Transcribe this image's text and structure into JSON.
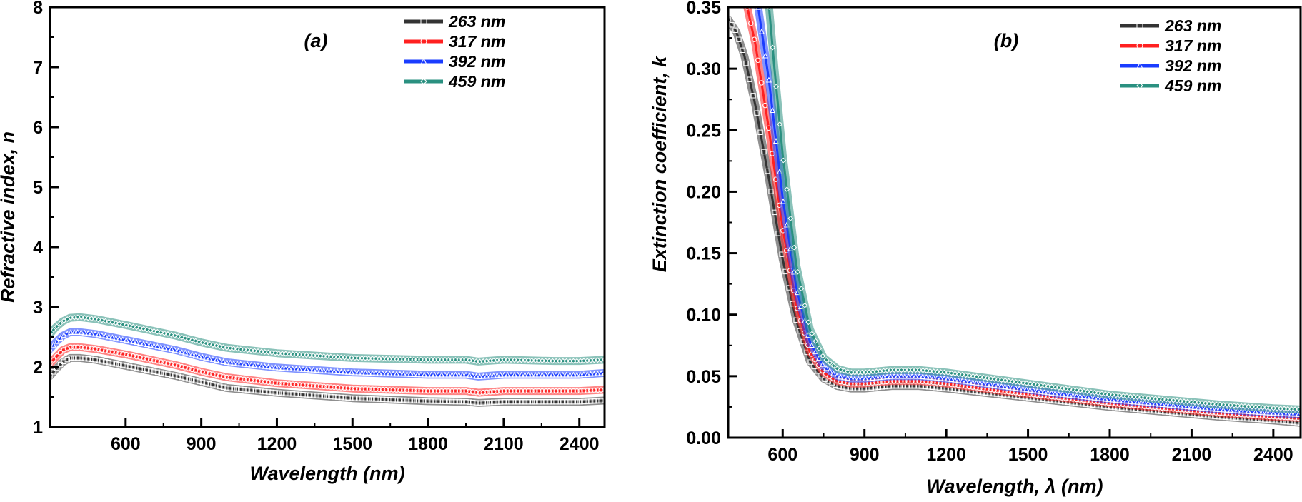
{
  "chart_data": [
    {
      "type": "line",
      "panel_label": "(a)",
      "xlabel": "Wavelength (nm)",
      "ylabel": "Refractive index, n",
      "xlim": [
        300,
        2500
      ],
      "ylim": [
        1,
        8
      ],
      "xticks": [
        600,
        900,
        1200,
        1500,
        1800,
        2100,
        2400
      ],
      "yticks": [
        1,
        2,
        3,
        4,
        5,
        6,
        7,
        8
      ],
      "legend_position": "top-right",
      "series": [
        {
          "name": "263 nm",
          "color": "#333333",
          "marker": "square",
          "x": [
            300,
            320,
            350,
            380,
            420,
            480,
            600,
            800,
            900,
            1000,
            1200,
            1500,
            1800,
            1950,
            2000,
            2100,
            2200,
            2300,
            2400,
            2500
          ],
          "y": [
            1.85,
            1.95,
            2.08,
            2.15,
            2.15,
            2.12,
            2.02,
            1.85,
            1.75,
            1.65,
            1.57,
            1.48,
            1.43,
            1.42,
            1.4,
            1.42,
            1.42,
            1.42,
            1.42,
            1.44
          ]
        },
        {
          "name": "317 nm",
          "color": "#ff2020",
          "marker": "circle",
          "x": [
            300,
            320,
            350,
            380,
            420,
            480,
            600,
            800,
            900,
            1000,
            1200,
            1500,
            1800,
            1950,
            2000,
            2100,
            2200,
            2300,
            2400,
            2500
          ],
          "y": [
            2.05,
            2.15,
            2.28,
            2.33,
            2.33,
            2.3,
            2.21,
            2.03,
            1.92,
            1.83,
            1.73,
            1.64,
            1.6,
            1.6,
            1.57,
            1.6,
            1.6,
            1.6,
            1.6,
            1.62
          ]
        },
        {
          "name": "392 nm",
          "color": "#1a3cff",
          "marker": "triangle",
          "x": [
            300,
            320,
            350,
            380,
            420,
            480,
            600,
            800,
            900,
            1000,
            1200,
            1500,
            1800,
            1950,
            2000,
            2100,
            2200,
            2300,
            2400,
            2500
          ],
          "y": [
            2.3,
            2.4,
            2.52,
            2.58,
            2.58,
            2.55,
            2.45,
            2.28,
            2.17,
            2.08,
            1.99,
            1.91,
            1.87,
            1.87,
            1.84,
            1.87,
            1.87,
            1.87,
            1.87,
            1.9
          ]
        },
        {
          "name": "459 nm",
          "color": "#2a9080",
          "marker": "diamond",
          "x": [
            300,
            320,
            350,
            380,
            420,
            480,
            600,
            800,
            900,
            1000,
            1200,
            1500,
            1800,
            1950,
            2000,
            2100,
            2200,
            2300,
            2400,
            2500
          ],
          "y": [
            2.55,
            2.65,
            2.76,
            2.82,
            2.83,
            2.8,
            2.7,
            2.52,
            2.41,
            2.32,
            2.23,
            2.15,
            2.12,
            2.12,
            2.09,
            2.12,
            2.11,
            2.1,
            2.1,
            2.12
          ]
        }
      ]
    },
    {
      "type": "line",
      "panel_label": "(b)",
      "xlabel": "Wavelength, λ (nm)",
      "ylabel": "Extinction coefficient, k",
      "xlim": [
        400,
        2500
      ],
      "ylim": [
        0,
        0.35
      ],
      "xticks": [
        600,
        900,
        1200,
        1500,
        1800,
        2100,
        2400
      ],
      "yticks": [
        "0.00",
        "0.05",
        "0.10",
        "0.15",
        "0.20",
        "0.25",
        "0.30",
        "0.35"
      ],
      "legend_position": "top-right",
      "series": [
        {
          "name": "263 nm",
          "color": "#333333",
          "marker": "square",
          "x": [
            400,
            430,
            460,
            500,
            550,
            600,
            650,
            700,
            750,
            800,
            850,
            900,
            1000,
            1100,
            1200,
            1400,
            1600,
            1800,
            2000,
            2200,
            2400,
            2500
          ],
          "y": [
            0.34,
            0.33,
            0.31,
            0.27,
            0.21,
            0.145,
            0.095,
            0.062,
            0.048,
            0.042,
            0.04,
            0.04,
            0.042,
            0.042,
            0.04,
            0.035,
            0.03,
            0.025,
            0.021,
            0.017,
            0.014,
            0.012
          ]
        },
        {
          "name": "317 nm",
          "color": "#ff2020",
          "marker": "circle",
          "x": [
            470,
            500,
            550,
            600,
            650,
            700,
            750,
            800,
            850,
            900,
            1000,
            1100,
            1200,
            1400,
            1600,
            1800,
            2000,
            2200,
            2400,
            2500
          ],
          "y": [
            0.35,
            0.32,
            0.25,
            0.17,
            0.108,
            0.07,
            0.053,
            0.046,
            0.044,
            0.044,
            0.046,
            0.046,
            0.044,
            0.038,
            0.033,
            0.028,
            0.024,
            0.02,
            0.017,
            0.016
          ]
        },
        {
          "name": "392 nm",
          "color": "#1a3cff",
          "marker": "triangle",
          "x": [
            510,
            550,
            600,
            650,
            700,
            750,
            800,
            850,
            900,
            1000,
            1100,
            1200,
            1400,
            1600,
            1800,
            2000,
            2200,
            2400,
            2500
          ],
          "y": [
            0.35,
            0.29,
            0.195,
            0.122,
            0.078,
            0.058,
            0.05,
            0.048,
            0.048,
            0.05,
            0.05,
            0.048,
            0.042,
            0.036,
            0.031,
            0.027,
            0.023,
            0.02,
            0.019
          ]
        },
        {
          "name": "459 nm",
          "color": "#2a9080",
          "marker": "diamond",
          "x": [
            550,
            570,
            600,
            650,
            700,
            750,
            800,
            850,
            900,
            1000,
            1100,
            1200,
            1400,
            1600,
            1800,
            2000,
            2200,
            2400,
            2500
          ],
          "y": [
            0.35,
            0.3,
            0.23,
            0.14,
            0.088,
            0.065,
            0.056,
            0.053,
            0.053,
            0.055,
            0.055,
            0.053,
            0.047,
            0.041,
            0.035,
            0.031,
            0.027,
            0.024,
            0.023
          ]
        }
      ]
    }
  ]
}
